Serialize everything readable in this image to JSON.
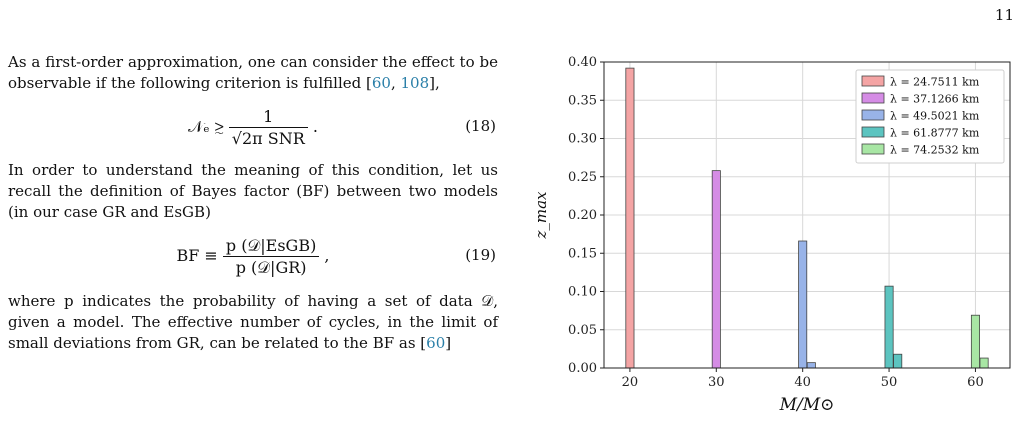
{
  "page_number": "11",
  "text": {
    "para1_pre": "As a first-order approximation, one can consider the effect to be observable if the following criterion is fulfilled [",
    "para1_cite1": "60",
    "para1_sep": ", ",
    "para1_cite2": "108",
    "para1_post": "],",
    "eq18_lhs": "𝒩ₑ ≳ ",
    "eq18_numerator": "1",
    "eq18_denominator": "√2π SNR",
    "eq18_tail": " .",
    "eq18_number": "(18)",
    "para2": "In order to understand the meaning of this condition, let us recall the definition of Bayes factor (BF) between two models (in our case GR and EsGB)",
    "eq19_lhs": "BF ≡ ",
    "eq19_numerator": "p (𝒟|EsGB)",
    "eq19_denominator": "p (𝒟|GR)",
    "eq19_tail": " ,",
    "eq19_number": "(19)",
    "para3_pre": "where p indicates the probability of having a set of data 𝒟, given a model. The effective number of cycles, in the limit of small deviations from GR, can be related to the BF as [",
    "para3_cite": "60",
    "para3_post": "]"
  },
  "chart_data": {
    "type": "bar",
    "xlabel": "M/M⊙",
    "ylabel": "z_max",
    "ylim": [
      0,
      0.4
    ],
    "xlim": [
      17,
      64
    ],
    "xticks": [
      20,
      30,
      40,
      50,
      60
    ],
    "yticks": [
      "0.00",
      "0.05",
      "0.10",
      "0.15",
      "0.20",
      "0.25",
      "0.30",
      "0.35",
      "0.40"
    ],
    "grid": true,
    "legend_position": "top-right",
    "series": [
      {
        "name": "λ = 24.7511 km",
        "color": "#f4a4a4",
        "values": [
          [
            20,
            0.392
          ]
        ]
      },
      {
        "name": "λ = 37.1266 km",
        "color": "#d58ce5",
        "values": [
          [
            30,
            0.258
          ]
        ]
      },
      {
        "name": "λ = 49.5021 km",
        "color": "#98b3e8",
        "values": [
          [
            40,
            0.166
          ],
          [
            41,
            0.007
          ]
        ]
      },
      {
        "name": "λ = 61.8777 km",
        "color": "#5cc4c0",
        "values": [
          [
            50,
            0.107
          ],
          [
            51,
            0.018
          ]
        ]
      },
      {
        "name": "λ = 74.2532 km",
        "color": "#a8e6a4",
        "values": [
          [
            60,
            0.069
          ],
          [
            61,
            0.013
          ]
        ]
      }
    ]
  }
}
